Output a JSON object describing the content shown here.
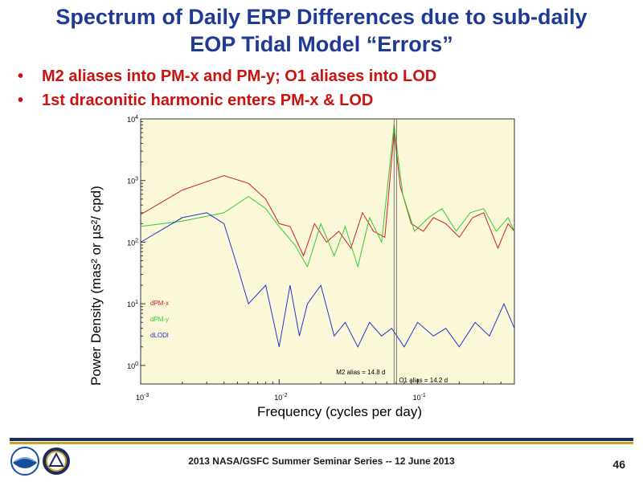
{
  "slide": {
    "title_line1": "Spectrum of Daily ERP Differences due to sub-daily",
    "title_line2": "EOP Tidal Model “Errors”",
    "bullets": [
      "M2 aliases into PM-x and PM-y; O1 aliases into LOD",
      "1st draconitic harmonic enters PM-x & LOD"
    ],
    "footer": "2013 NASA/GSFC Summer Seminar Series -- 12 June 2013",
    "page_number": "46",
    "logos": [
      "noaa-logo",
      "ngs-logo"
    ]
  },
  "chart_data": {
    "type": "line",
    "xscale": "log",
    "yscale": "log",
    "xlim": [
      0.001,
      0.5
    ],
    "ylim": [
      0.5,
      10000
    ],
    "xticks": [
      0.001,
      0.01,
      0.1
    ],
    "xtick_labels": [
      "10^-3",
      "10^-2",
      "10^-1"
    ],
    "yticks": [
      1,
      10,
      100,
      1000,
      10000
    ],
    "ytick_labels": [
      "10^0",
      "10^1",
      "10^2",
      "10^3",
      "10^4"
    ],
    "xlabel": "Frequency (cycles per day)",
    "ylabel": "Power Density  (mas² or  µs²/ cpd)",
    "legend_position": "left-middle",
    "background": "#faf8d8",
    "series": [
      {
        "name": "dPM-x",
        "color": "#cc2222",
        "x": [
          0.001,
          0.002,
          0.004,
          0.006,
          0.008,
          0.01,
          0.012,
          0.015,
          0.018,
          0.022,
          0.027,
          0.033,
          0.04,
          0.048,
          0.058,
          0.0676,
          0.075,
          0.09,
          0.11,
          0.13,
          0.16,
          0.2,
          0.25,
          0.3,
          0.38,
          0.45,
          0.5
        ],
        "y": [
          280,
          700,
          1200,
          900,
          500,
          200,
          180,
          60,
          200,
          100,
          150,
          80,
          300,
          150,
          120,
          6000,
          800,
          200,
          150,
          250,
          200,
          120,
          250,
          300,
          80,
          200,
          150
        ]
      },
      {
        "name": "dPM-y",
        "color": "#33cc33",
        "x": [
          0.001,
          0.002,
          0.004,
          0.006,
          0.008,
          0.01,
          0.013,
          0.016,
          0.02,
          0.025,
          0.03,
          0.037,
          0.045,
          0.055,
          0.0676,
          0.078,
          0.095,
          0.12,
          0.15,
          0.19,
          0.24,
          0.3,
          0.37,
          0.45,
          0.5
        ],
        "y": [
          180,
          220,
          300,
          550,
          350,
          180,
          90,
          40,
          200,
          60,
          180,
          40,
          250,
          100,
          8000,
          600,
          150,
          250,
          350,
          150,
          300,
          350,
          150,
          250,
          150
        ]
      },
      {
        "name": "dLODl",
        "color": "#2233cc",
        "x": [
          0.001,
          0.002,
          0.003,
          0.004,
          0.005,
          0.006,
          0.008,
          0.01,
          0.012,
          0.014,
          0.016,
          0.02,
          0.025,
          0.03,
          0.037,
          0.045,
          0.055,
          0.065,
          0.08,
          0.1,
          0.13,
          0.16,
          0.2,
          0.26,
          0.33,
          0.42,
          0.5
        ],
        "y": [
          100,
          250,
          300,
          200,
          40,
          10,
          20,
          2,
          20,
          3,
          10,
          20,
          3,
          5,
          2,
          5,
          3,
          4,
          2,
          5,
          3,
          4,
          2,
          5,
          3,
          10,
          4
        ]
      }
    ],
    "annotations": [
      {
        "text": "M2 alias = 14.8 d",
        "x": 0.0676
      },
      {
        "text": "O1 alias = 14.2 d",
        "x": 0.0704
      }
    ]
  }
}
